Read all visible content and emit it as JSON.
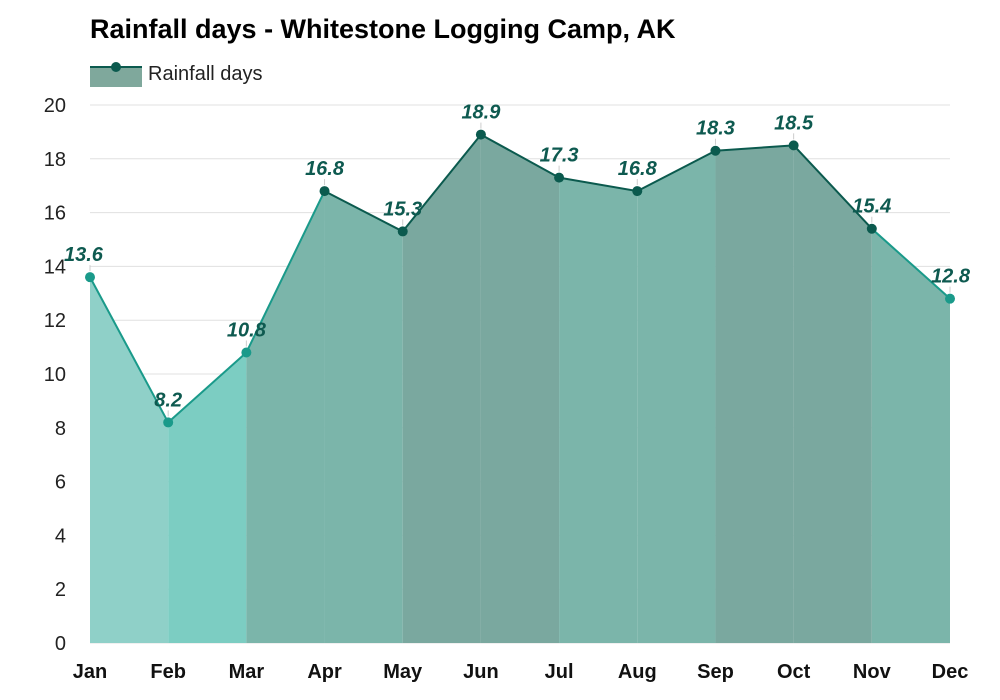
{
  "colors": {
    "line_dark": "#0b5a4e",
    "line_light": "#1a9a8a",
    "dot_dark": "#0b5a4e",
    "dot_light": "#1a9a8a",
    "label": "#0e5a50",
    "legend_fill": "#7fa89c",
    "grid": "#e0e0e0",
    "band_colors": [
      "#8fd0c8",
      "#7ccdc2",
      "#7bb5aa",
      "#7bb5aa",
      "#7aa89f",
      "#7aa89f",
      "#7bb5aa",
      "#7bb5aa",
      "#7aa89f",
      "#7aa89f",
      "#7bb5aa",
      "#7ccdc2"
    ]
  },
  "chart_data": {
    "type": "area",
    "title": "Rainfall days - Whitestone Logging Camp, AK",
    "xlabel": "",
    "ylabel": "",
    "categories": [
      "Jan",
      "Feb",
      "Mar",
      "Apr",
      "May",
      "Jun",
      "Jul",
      "Aug",
      "Sep",
      "Oct",
      "Nov",
      "Dec"
    ],
    "series": [
      {
        "name": "Rainfall days",
        "values": [
          13.6,
          8.2,
          10.8,
          16.8,
          15.3,
          18.9,
          17.3,
          16.8,
          18.3,
          18.5,
          15.4,
          12.8
        ]
      }
    ],
    "data_labels": [
      "13.6",
      "8.2",
      "10.8",
      "16.8",
      "15.3",
      "18.9",
      "17.3",
      "16.8",
      "18.3",
      "18.5",
      "15.4",
      "12.8"
    ],
    "ylim": [
      0,
      20
    ],
    "yticks": [
      "0",
      "2",
      "4",
      "6",
      "8",
      "10",
      "12",
      "14",
      "16",
      "18",
      "20"
    ],
    "grid": true,
    "legend": "top-left"
  }
}
